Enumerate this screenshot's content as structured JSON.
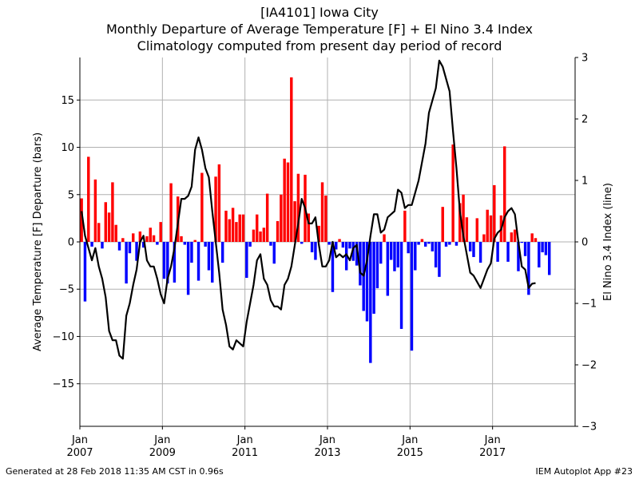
{
  "header": {
    "line1": "[IA4101] Iowa City",
    "line2": "Monthly Departure of Average Temperature [F] + El Nino 3.4 Index",
    "line3": "Climatology computed from present day period of record"
  },
  "footer": {
    "left": "Generated at 28 Feb 2018 11:35 AM CST in 0.96s",
    "right": "IEM Autoplot App #23"
  },
  "colors": {
    "positive": "#ff0000",
    "negative": "#0000ff",
    "line": "#000000",
    "grid": "#b0b0b0"
  },
  "chart_data": {
    "type": "bar",
    "ylabel": "Average Temperature [F] Departure (bars)",
    "y2label": "El Nino 3.4 Index (line)",
    "ylim": [
      -19.5,
      19.5
    ],
    "y2lim": [
      -3,
      3
    ],
    "yticks": [
      -15,
      -10,
      -5,
      0,
      5,
      10,
      15
    ],
    "y2ticks": [
      -3,
      -2,
      -1,
      0,
      1,
      2,
      3
    ],
    "xlim": [
      "2007-01",
      "2019-01"
    ],
    "xticks": [
      {
        "month": "2007-01",
        "label1": "Jan",
        "label2": "2007"
      },
      {
        "month": "2009-01",
        "label1": "Jan",
        "label2": "2009"
      },
      {
        "month": "2011-01",
        "label1": "Jan",
        "label2": "2011"
      },
      {
        "month": "2013-01",
        "label1": "Jan",
        "label2": "2013"
      },
      {
        "month": "2015-01",
        "label1": "Jan",
        "label2": "2015"
      },
      {
        "month": "2017-01",
        "label1": "Jan",
        "label2": "2017"
      }
    ],
    "grid": true,
    "start_month": "2007-01",
    "bars_departure_f": [
      4.6,
      -6.3,
      9.0,
      -0.5,
      6.6,
      2.0,
      -0.7,
      4.2,
      3.1,
      6.3,
      1.8,
      -0.9,
      0.4,
      -4.4,
      -1.2,
      0.9,
      -2.0,
      1.1,
      -0.6,
      0.6,
      1.5,
      0.7,
      -0.3,
      2.1,
      -3.9,
      -4.4,
      6.2,
      -4.3,
      4.8,
      0.6,
      -0.3,
      -5.6,
      -2.2,
      0.2,
      -4.1,
      7.3,
      -0.5,
      -3.0,
      -4.3,
      6.9,
      8.2,
      -2.2,
      3.3,
      2.4,
      3.6,
      2.1,
      2.9,
      2.9,
      -3.8,
      -0.5,
      1.3,
      2.9,
      1.1,
      1.5,
      5.1,
      -0.4,
      -2.3,
      2.2,
      5.0,
      8.8,
      8.4,
      17.4,
      4.3,
      7.2,
      -0.2,
      7.1,
      3.0,
      -1.1,
      -1.9,
      1.7,
      6.3,
      4.9,
      -0.3,
      -5.3,
      -0.8,
      0.3,
      -0.6,
      -3.0,
      -0.7,
      -2.0,
      -2.5,
      -4.6,
      -7.3,
      -8.4,
      -12.8,
      -7.6,
      -4.9,
      -2.3,
      0.8,
      -5.7,
      -1.9,
      -3.1,
      -2.7,
      -9.2,
      3.3,
      -1.2,
      -11.5,
      -3.0,
      -0.3,
      0.3,
      -0.5,
      -0.2,
      -1.0,
      -2.7,
      -3.7,
      3.7,
      -0.5,
      -0.3,
      10.3,
      -0.4,
      4.1,
      5.0,
      2.6,
      -1.0,
      -1.6,
      2.5,
      -2.2,
      0.8,
      3.4,
      2.8,
      6.0,
      -2.1,
      2.8,
      10.1,
      -2.1,
      1.0,
      1.3,
      -3.1,
      -0.1,
      -1.5,
      -5.6,
      0.9,
      0.4,
      -2.7,
      -1.1,
      -1.4,
      -3.5
    ],
    "line_nino34": [
      0.5,
      0.1,
      -0.1,
      -0.3,
      -0.1,
      -0.4,
      -0.6,
      -0.9,
      -1.45,
      -1.6,
      -1.6,
      -1.85,
      -1.9,
      -1.2,
      -1.0,
      -0.7,
      -0.45,
      0.0,
      0.1,
      -0.3,
      -0.4,
      -0.4,
      -0.6,
      -0.85,
      -1.0,
      -0.6,
      -0.4,
      -0.1,
      0.3,
      0.7,
      0.7,
      0.75,
      0.9,
      1.5,
      1.7,
      1.5,
      1.2,
      1.05,
      0.5,
      0.0,
      -0.5,
      -1.1,
      -1.35,
      -1.7,
      -1.75,
      -1.6,
      -1.65,
      -1.7,
      -1.3,
      -1.0,
      -0.7,
      -0.3,
      -0.2,
      -0.6,
      -0.7,
      -0.95,
      -1.05,
      -1.05,
      -1.1,
      -0.7,
      -0.6,
      -0.4,
      -0.05,
      0.3,
      0.7,
      0.55,
      0.3,
      0.3,
      0.4,
      -0.05,
      -0.4,
      -0.4,
      -0.3,
      0.0,
      -0.25,
      -0.2,
      -0.25,
      -0.2,
      -0.3,
      -0.1,
      -0.05,
      -0.5,
      -0.55,
      -0.3,
      0.1,
      0.45,
      0.45,
      0.15,
      0.2,
      0.4,
      0.45,
      0.5,
      0.85,
      0.8,
      0.55,
      0.6,
      0.6,
      0.8,
      1.0,
      1.3,
      1.6,
      2.1,
      2.3,
      2.5,
      2.95,
      2.85,
      2.65,
      2.45,
      1.8,
      1.2,
      0.5,
      0.1,
      -0.2,
      -0.5,
      -0.55,
      -0.65,
      -0.75,
      -0.6,
      -0.45,
      -0.35,
      0.05,
      0.15,
      0.2,
      0.4,
      0.5,
      0.55,
      0.45,
      0.0,
      -0.4,
      -0.45,
      -0.75,
      -0.68,
      -0.67
    ]
  }
}
